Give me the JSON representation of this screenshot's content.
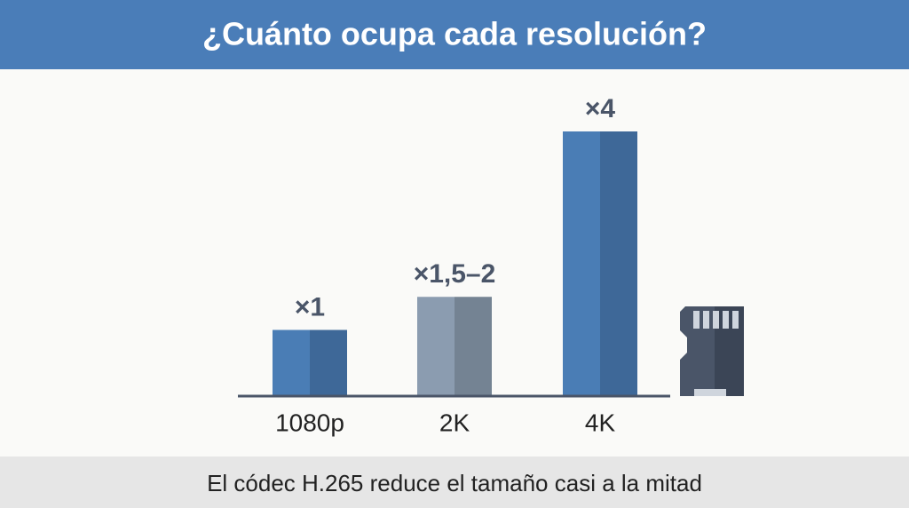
{
  "chart_data": {
    "type": "bar",
    "title": "¿Cuánto ocupa cada resolución?",
    "subtitle": "El códec H.265 reduce el tamaño casi a la mitad",
    "categories": [
      "1080p",
      "2K",
      "4K"
    ],
    "values": [
      1,
      1.5,
      4
    ],
    "value_labels": [
      "×1",
      "×1,5–2",
      "×4"
    ],
    "colors": [
      "#4a7db5",
      "#8b9cb0",
      "#4a7db5"
    ]
  }
}
